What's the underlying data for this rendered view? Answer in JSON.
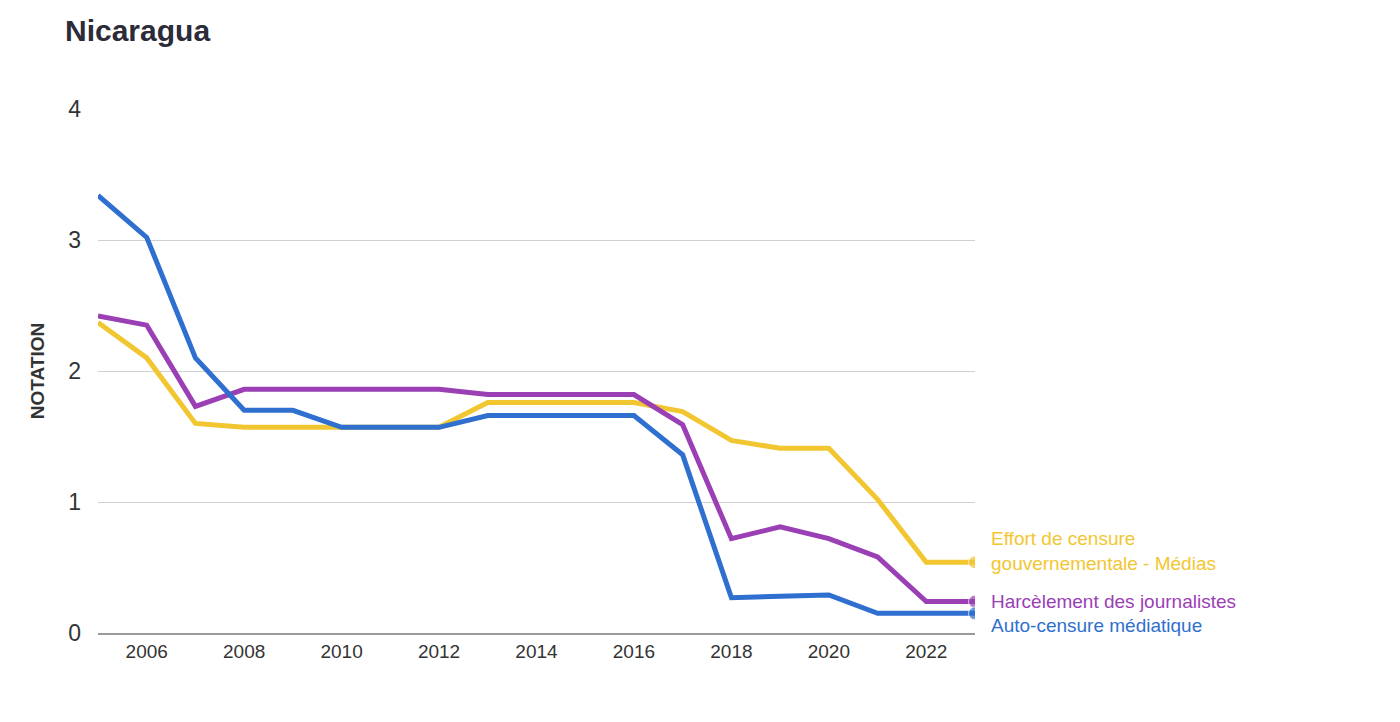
{
  "chart_data": {
    "type": "line",
    "title": "Nicaragua",
    "y_label": "NOTATION",
    "x": [
      2005,
      2006,
      2007,
      2008,
      2009,
      2010,
      2011,
      2012,
      2013,
      2014,
      2015,
      2016,
      2017,
      2018,
      2019,
      2020,
      2021,
      2022,
      2023
    ],
    "xlim": [
      2005,
      2023
    ],
    "xticks": [
      2006,
      2008,
      2010,
      2012,
      2014,
      2016,
      2018,
      2020,
      2022
    ],
    "ylim": [
      0,
      4
    ],
    "yticks": [
      0,
      1,
      2,
      3,
      4
    ],
    "grid": true,
    "series": [
      {
        "name": "Effort de censure gouvernementale - Médias",
        "color": "#f2c631",
        "values": [
          2.37,
          2.1,
          1.6,
          1.57,
          1.57,
          1.57,
          1.57,
          1.57,
          1.76,
          1.76,
          1.76,
          1.76,
          1.69,
          1.47,
          1.41,
          1.41,
          1.02,
          0.54,
          0.54
        ]
      },
      {
        "name": "Harcèlement des journalistes",
        "color": "#9b3fb5",
        "values": [
          2.42,
          2.35,
          1.73,
          1.86,
          1.86,
          1.86,
          1.86,
          1.86,
          1.82,
          1.82,
          1.82,
          1.82,
          1.59,
          0.72,
          0.81,
          0.72,
          0.58,
          0.24,
          0.24
        ]
      },
      {
        "name": "Auto-censure médiatique",
        "color": "#2f6fcf",
        "values": [
          3.34,
          3.02,
          2.1,
          1.7,
          1.7,
          1.57,
          1.57,
          1.57,
          1.66,
          1.66,
          1.66,
          1.66,
          1.36,
          0.27,
          0.28,
          0.29,
          0.15,
          0.15,
          0.15
        ]
      }
    ]
  }
}
